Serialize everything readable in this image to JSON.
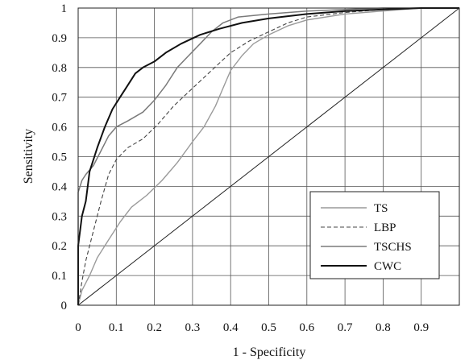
{
  "chart_data": {
    "type": "line",
    "title": "",
    "xlabel": "1 - Specificity",
    "ylabel": "Sensitivity",
    "xlim": [
      0,
      1
    ],
    "ylim": [
      0,
      1
    ],
    "x_ticks": [
      "0",
      "0.1",
      "0.2",
      "0.3",
      "0.4",
      "0.5",
      "0.6",
      "0.7",
      "0.8",
      "0.9"
    ],
    "y_ticks": [
      "0",
      "0.1",
      "0.2",
      "0.3",
      "0.4",
      "0.5",
      "0.6",
      "0.7",
      "0.8",
      "0.9",
      "1"
    ],
    "grid": true,
    "legend_position": "bottom-right",
    "series": [
      {
        "name": "TS",
        "color": "#9a9a9a",
        "dash": "solid",
        "points": [
          [
            0,
            0
          ],
          [
            0.01,
            0.05
          ],
          [
            0.03,
            0.1
          ],
          [
            0.05,
            0.16
          ],
          [
            0.08,
            0.22
          ],
          [
            0.11,
            0.28
          ],
          [
            0.14,
            0.33
          ],
          [
            0.18,
            0.37
          ],
          [
            0.22,
            0.42
          ],
          [
            0.26,
            0.48
          ],
          [
            0.3,
            0.55
          ],
          [
            0.33,
            0.6
          ],
          [
            0.36,
            0.67
          ],
          [
            0.38,
            0.73
          ],
          [
            0.4,
            0.79
          ],
          [
            0.43,
            0.84
          ],
          [
            0.46,
            0.88
          ],
          [
            0.5,
            0.91
          ],
          [
            0.55,
            0.94
          ],
          [
            0.6,
            0.96
          ],
          [
            0.7,
            0.98
          ],
          [
            0.8,
            0.99
          ],
          [
            0.9,
            1.0
          ],
          [
            1,
            1
          ]
        ]
      },
      {
        "name": "LBP",
        "color": "#444444",
        "dash": "dashed",
        "points": [
          [
            0,
            0
          ],
          [
            0.01,
            0.08
          ],
          [
            0.02,
            0.15
          ],
          [
            0.04,
            0.25
          ],
          [
            0.06,
            0.35
          ],
          [
            0.08,
            0.44
          ],
          [
            0.1,
            0.49
          ],
          [
            0.13,
            0.53
          ],
          [
            0.17,
            0.56
          ],
          [
            0.21,
            0.61
          ],
          [
            0.25,
            0.67
          ],
          [
            0.3,
            0.73
          ],
          [
            0.35,
            0.79
          ],
          [
            0.4,
            0.85
          ],
          [
            0.45,
            0.89
          ],
          [
            0.5,
            0.92
          ],
          [
            0.55,
            0.95
          ],
          [
            0.6,
            0.97
          ],
          [
            0.7,
            0.985
          ],
          [
            0.8,
            0.995
          ],
          [
            0.9,
            1.0
          ],
          [
            1,
            1
          ]
        ]
      },
      {
        "name": "TSCHS",
        "color": "#7a7a7a",
        "dash": "solid",
        "points": [
          [
            0,
            0
          ],
          [
            0,
            0.38
          ],
          [
            0.01,
            0.42
          ],
          [
            0.02,
            0.44
          ],
          [
            0.04,
            0.47
          ],
          [
            0.06,
            0.52
          ],
          [
            0.08,
            0.57
          ],
          [
            0.1,
            0.6
          ],
          [
            0.13,
            0.62
          ],
          [
            0.17,
            0.65
          ],
          [
            0.2,
            0.69
          ],
          [
            0.23,
            0.74
          ],
          [
            0.26,
            0.8
          ],
          [
            0.29,
            0.84
          ],
          [
            0.32,
            0.88
          ],
          [
            0.35,
            0.92
          ],
          [
            0.38,
            0.95
          ],
          [
            0.42,
            0.97
          ],
          [
            0.5,
            0.98
          ],
          [
            0.6,
            0.99
          ],
          [
            0.7,
            0.995
          ],
          [
            0.8,
            1.0
          ],
          [
            1,
            1
          ]
        ]
      },
      {
        "name": "CWC",
        "color": "#111111",
        "dash": "solid",
        "points": [
          [
            0,
            0
          ],
          [
            0,
            0.2
          ],
          [
            0.01,
            0.3
          ],
          [
            0.02,
            0.35
          ],
          [
            0.03,
            0.45
          ],
          [
            0.05,
            0.53
          ],
          [
            0.07,
            0.6
          ],
          [
            0.09,
            0.66
          ],
          [
            0.11,
            0.7
          ],
          [
            0.13,
            0.74
          ],
          [
            0.15,
            0.78
          ],
          [
            0.17,
            0.8
          ],
          [
            0.2,
            0.82
          ],
          [
            0.23,
            0.85
          ],
          [
            0.27,
            0.88
          ],
          [
            0.32,
            0.91
          ],
          [
            0.37,
            0.93
          ],
          [
            0.43,
            0.95
          ],
          [
            0.5,
            0.965
          ],
          [
            0.6,
            0.98
          ],
          [
            0.7,
            0.99
          ],
          [
            0.8,
            0.995
          ],
          [
            0.9,
            1.0
          ],
          [
            1,
            1
          ]
        ]
      },
      {
        "name": "",
        "color": "#222222",
        "dash": "solid",
        "points": [
          [
            0,
            0
          ],
          [
            1,
            1
          ]
        ]
      }
    ]
  }
}
